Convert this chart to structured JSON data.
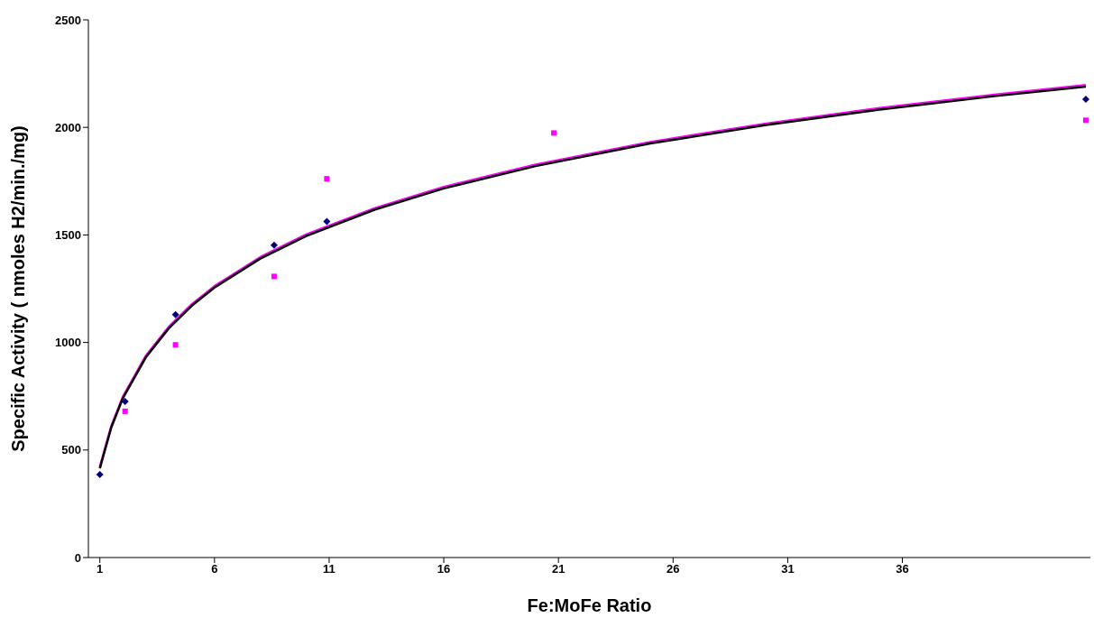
{
  "chart_data": {
    "type": "scatter",
    "xlabel": "Fe:MoFe Ratio",
    "ylabel": "Specific Activity ( nmoles H2/min./mg)",
    "xlim": [
      0.5,
      44.2
    ],
    "xticks": [
      1,
      6,
      11,
      16,
      21,
      26,
      31,
      36
    ],
    "ylim": [
      0,
      2500
    ],
    "yticks": [
      0,
      500,
      1000,
      1500,
      2000,
      2500
    ],
    "grid": false,
    "series": [
      {
        "type": "line",
        "color": "#ff00ff",
        "marker": "none",
        "x": [
          1,
          1.5,
          2,
          3,
          4,
          5,
          6,
          8,
          10,
          13,
          16,
          20,
          25,
          30,
          35,
          40,
          44
        ],
        "values": [
          422,
          612,
          747,
          937,
          1072,
          1177,
          1262,
          1397,
          1502,
          1625,
          1723,
          1827,
          1932,
          2017,
          2090,
          2152,
          2197
        ]
      },
      {
        "type": "line",
        "color": "#000000",
        "marker": "none",
        "x": [
          1,
          1.5,
          2,
          3,
          4,
          5,
          6,
          8,
          10,
          13,
          16,
          20,
          25,
          30,
          35,
          40,
          44
        ],
        "values": [
          415,
          605,
          740,
          930,
          1065,
          1170,
          1255,
          1390,
          1495,
          1618,
          1716,
          1820,
          1925,
          2010,
          2083,
          2145,
          2190
        ]
      },
      {
        "color": "#000080",
        "marker": "diamond",
        "x": [
          1,
          2.1,
          4.3,
          8.6,
          10.9,
          44
        ],
        "values": [
          386,
          726,
          1129,
          1452,
          1562,
          2131
        ]
      },
      {
        "color": "#ff00ff",
        "marker": "square",
        "x": [
          2.1,
          4.3,
          8.6,
          10.9,
          20.8,
          44
        ],
        "values": [
          680,
          989,
          1307,
          1761,
          1974,
          2033
        ]
      }
    ]
  }
}
